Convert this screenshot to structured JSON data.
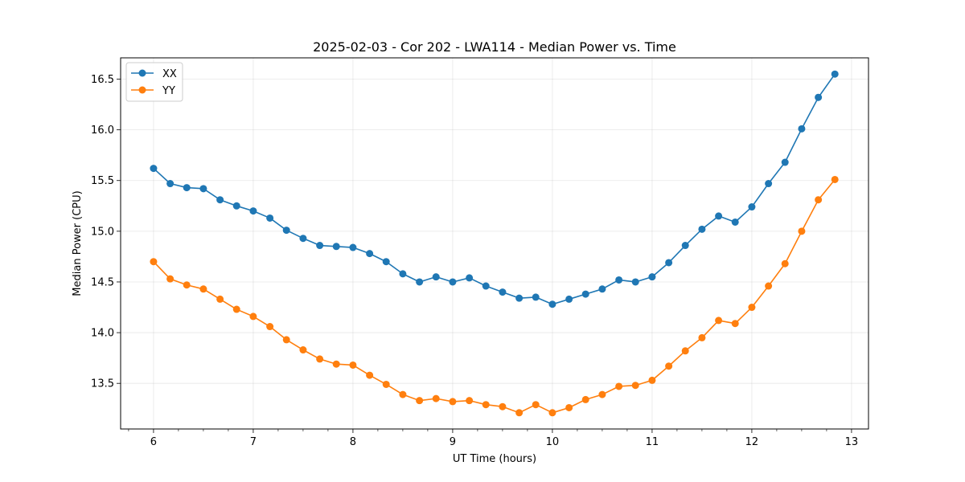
{
  "chart_data": {
    "type": "line",
    "title": "2025-02-03 - Cor 202 - LWA114 - Median Power vs. Time",
    "xlabel": "UT Time (hours)",
    "ylabel": "Median Power (CPU)",
    "xlim": [
      5.67,
      13.17
    ],
    "ylim": [
      13.05,
      16.71
    ],
    "xticks": [
      6,
      7,
      8,
      9,
      10,
      11,
      12,
      13
    ],
    "xtick_labels": [
      "6",
      "7",
      "8",
      "9",
      "10",
      "11",
      "12",
      "13"
    ],
    "xminor_step": 0.25,
    "yticks": [
      13.5,
      14.0,
      14.5,
      15.0,
      15.5,
      16.0,
      16.5
    ],
    "ytick_labels": [
      "13.5",
      "14.0",
      "14.5",
      "15.0",
      "15.5",
      "16.0",
      "16.5"
    ],
    "grid": true,
    "legend_position": "top-left",
    "x": [
      6.0,
      6.167,
      6.333,
      6.5,
      6.667,
      6.833,
      7.0,
      7.167,
      7.333,
      7.5,
      7.667,
      7.833,
      8.0,
      8.167,
      8.333,
      8.5,
      8.667,
      8.833,
      9.0,
      9.167,
      9.333,
      9.5,
      9.667,
      9.833,
      10.0,
      10.167,
      10.333,
      10.5,
      10.667,
      10.833,
      11.0,
      11.167,
      11.333,
      11.5,
      11.667,
      11.833,
      12.0,
      12.167,
      12.333,
      12.5,
      12.667,
      12.833
    ],
    "series": [
      {
        "name": "XX",
        "color": "#1f77b4",
        "values": [
          15.62,
          15.47,
          15.43,
          15.42,
          15.31,
          15.25,
          15.2,
          15.13,
          15.01,
          14.93,
          14.86,
          14.85,
          14.84,
          14.78,
          14.7,
          14.58,
          14.5,
          14.55,
          14.5,
          14.54,
          14.46,
          14.4,
          14.34,
          14.35,
          14.28,
          14.33,
          14.38,
          14.43,
          14.52,
          14.5,
          14.55,
          14.69,
          14.86,
          15.02,
          15.15,
          15.09,
          15.24,
          15.47,
          15.68,
          16.01,
          16.32,
          16.55
        ]
      },
      {
        "name": "YY",
        "color": "#ff7f0e",
        "values": [
          14.7,
          14.53,
          14.47,
          14.43,
          14.33,
          14.23,
          14.16,
          14.06,
          13.93,
          13.83,
          13.74,
          13.69,
          13.68,
          13.58,
          13.49,
          13.39,
          13.33,
          13.35,
          13.32,
          13.33,
          13.29,
          13.27,
          13.21,
          13.29,
          13.21,
          13.26,
          13.34,
          13.39,
          13.47,
          13.48,
          13.53,
          13.67,
          13.82,
          13.95,
          14.12,
          14.09,
          14.25,
          14.46,
          14.68,
          15.0,
          15.31,
          15.51
        ]
      }
    ]
  }
}
